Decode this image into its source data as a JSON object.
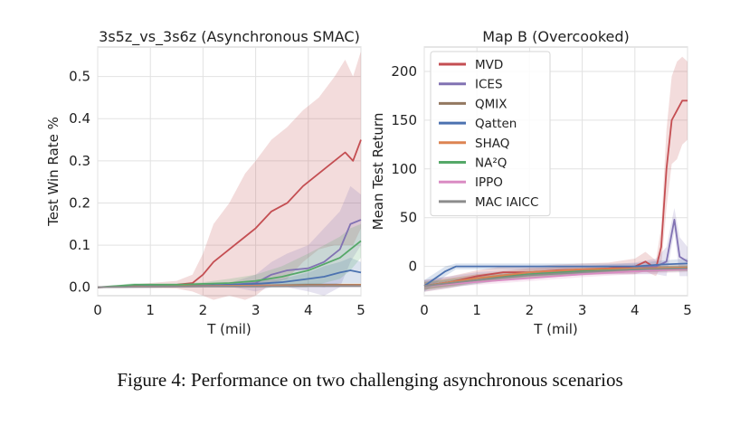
{
  "caption": "Figure 4: Performance on two challenging asynchronous scenarios",
  "chart_data": [
    {
      "type": "line",
      "title": "3s5z_vs_3s6z (Asynchronous SMAC)",
      "xlabel": "T (mil)",
      "ylabel": "Test Win Rate %",
      "xlim": [
        0,
        5
      ],
      "ylim": [
        -0.02,
        0.57
      ],
      "xticks": [
        "0",
        "1",
        "2",
        "3",
        "4",
        "5"
      ],
      "yticks": [
        "0.0",
        "0.1",
        "0.2",
        "0.3",
        "0.4",
        "0.5"
      ],
      "grid": true,
      "series": [
        {
          "name": "MVD",
          "color": "#c44e52",
          "x": [
            0,
            0.5,
            1,
            1.5,
            1.8,
            2,
            2.2,
            2.5,
            2.8,
            3,
            3.3,
            3.6,
            3.9,
            4.2,
            4.5,
            4.7,
            4.85,
            5
          ],
          "values": [
            0,
            0.002,
            0.004,
            0.006,
            0.01,
            0.03,
            0.06,
            0.09,
            0.12,
            0.14,
            0.18,
            0.2,
            0.24,
            0.27,
            0.3,
            0.32,
            0.3,
            0.35
          ],
          "band": [
            0,
            0.005,
            0.01,
            0.015,
            0.03,
            0.08,
            0.15,
            0.2,
            0.27,
            0.3,
            0.35,
            0.38,
            0.42,
            0.45,
            0.5,
            0.54,
            0.5,
            0.56
          ]
        },
        {
          "name": "ICES",
          "color": "#8172b3",
          "x": [
            0,
            1,
            2,
            2.5,
            3,
            3.3,
            3.6,
            4,
            4.3,
            4.6,
            4.8,
            5
          ],
          "values": [
            0,
            0.002,
            0.004,
            0.006,
            0.01,
            0.03,
            0.04,
            0.045,
            0.06,
            0.09,
            0.15,
            0.16
          ],
          "band": [
            0,
            0.004,
            0.008,
            0.01,
            0.03,
            0.06,
            0.08,
            0.1,
            0.14,
            0.18,
            0.24,
            0.22
          ]
        },
        {
          "name": "QMIX",
          "color": "#937860",
          "x": [
            0,
            1,
            2,
            3,
            4,
            5
          ],
          "values": [
            0,
            0.002,
            0.003,
            0.004,
            0.006,
            0.006
          ],
          "band": [
            0,
            0.003,
            0.004,
            0.006,
            0.01,
            0.01
          ]
        },
        {
          "name": "Qatten",
          "color": "#4c72b0",
          "x": [
            0,
            1,
            2,
            2.5,
            3,
            3.5,
            4,
            4.3,
            4.6,
            4.8,
            5
          ],
          "values": [
            0,
            0.003,
            0.004,
            0.006,
            0.008,
            0.012,
            0.02,
            0.025,
            0.035,
            0.04,
            0.035
          ],
          "band": [
            0,
            0.005,
            0.008,
            0.01,
            0.015,
            0.02,
            0.035,
            0.05,
            0.06,
            0.07,
            0.06
          ]
        },
        {
          "name": "SHAQ",
          "color": "#dd8452",
          "x": [
            0,
            1,
            2,
            3,
            4,
            5
          ],
          "values": [
            0,
            0.002,
            0.003,
            0.004,
            0.004,
            0.005
          ],
          "band": [
            0,
            0.003,
            0.004,
            0.005,
            0.006,
            0.007
          ]
        },
        {
          "name": "NA²Q",
          "color": "#55a868",
          "x": [
            0,
            0.7,
            1.5,
            2,
            2.5,
            3,
            3.5,
            4,
            4.3,
            4.6,
            4.8,
            5
          ],
          "values": [
            0,
            0.006,
            0.006,
            0.008,
            0.01,
            0.015,
            0.025,
            0.04,
            0.055,
            0.07,
            0.09,
            0.11
          ],
          "band": [
            0,
            0.01,
            0.01,
            0.012,
            0.02,
            0.03,
            0.05,
            0.08,
            0.1,
            0.12,
            0.14,
            0.15
          ]
        },
        {
          "name": "IPPO",
          "color": "#da8bc3",
          "x": [
            0,
            1,
            2,
            3,
            4,
            5
          ],
          "values": [
            0,
            0.001,
            0.002,
            0.002,
            0.003,
            0.003
          ],
          "band": [
            0,
            0.002,
            0.003,
            0.003,
            0.004,
            0.004
          ]
        },
        {
          "name": "MAC IAICC",
          "color": "#8c8c8c",
          "x": [
            0,
            1,
            2,
            3,
            4,
            5
          ],
          "values": [
            0,
            0.001,
            0.002,
            0.002,
            0.003,
            0.003
          ],
          "band": [
            0,
            0.002,
            0.003,
            0.003,
            0.004,
            0.004
          ]
        }
      ]
    },
    {
      "type": "line",
      "title": "Map B (Overcooked)",
      "xlabel": "T (mil)",
      "ylabel": "Mean Test Return",
      "xlim": [
        0,
        5
      ],
      "ylim": [
        -30,
        225
      ],
      "xticks": [
        "0",
        "1",
        "2",
        "3",
        "4",
        "5"
      ],
      "yticks": [
        "0",
        "50",
        "100",
        "150",
        "200"
      ],
      "grid": true,
      "legend": "top-left",
      "series": [
        {
          "name": "MVD",
          "color": "#c44e52",
          "x": [
            0,
            0.5,
            1,
            1.5,
            2,
            2.5,
            3,
            3.5,
            4,
            4.2,
            4.4,
            4.5,
            4.6,
            4.7,
            4.8,
            4.9,
            5
          ],
          "values": [
            -20,
            -16,
            -10,
            -6,
            -6,
            -4,
            -3,
            -2,
            0,
            5,
            -2,
            20,
            100,
            150,
            160,
            170,
            170
          ],
          "band": [
            -14,
            -10,
            -4,
            0,
            0,
            2,
            3,
            4,
            8,
            15,
            6,
            40,
            140,
            195,
            210,
            215,
            210
          ]
        },
        {
          "name": "ICES",
          "color": "#8172b3",
          "x": [
            0,
            1,
            2,
            3,
            4,
            4.4,
            4.6,
            4.75,
            4.85,
            5
          ],
          "values": [
            -20,
            -12,
            -6,
            -4,
            -2,
            0,
            5,
            48,
            10,
            5
          ],
          "band": [
            -14,
            -6,
            -2,
            0,
            4,
            8,
            20,
            60,
            30,
            20
          ]
        },
        {
          "name": "QMIX",
          "color": "#937860",
          "x": [
            0,
            1,
            2,
            3,
            4,
            5
          ],
          "values": [
            -20,
            -12,
            -8,
            -5,
            -3,
            -2
          ],
          "band": [
            -16,
            -8,
            -4,
            -2,
            0,
            1
          ]
        },
        {
          "name": "Qatten",
          "color": "#4c72b0",
          "x": [
            0,
            0.4,
            0.6,
            1,
            2,
            3,
            4,
            4.5,
            5
          ],
          "values": [
            -20,
            -5,
            0,
            0,
            0,
            0,
            0,
            2,
            3
          ],
          "band": [
            -14,
            0,
            3,
            3,
            3,
            3,
            3,
            6,
            8
          ]
        },
        {
          "name": "SHAQ",
          "color": "#dd8452",
          "x": [
            0,
            1,
            2,
            3,
            4,
            5
          ],
          "values": [
            -20,
            -12,
            -6,
            -3,
            -2,
            -1
          ],
          "band": [
            -16,
            -8,
            -2,
            0,
            1,
            2
          ]
        },
        {
          "name": "NA²Q",
          "color": "#55a868",
          "x": [
            0,
            1,
            2,
            3,
            4,
            5
          ],
          "values": [
            -20,
            -14,
            -8,
            -5,
            -3,
            -2
          ],
          "band": [
            -16,
            -10,
            -5,
            -2,
            0,
            1
          ]
        },
        {
          "name": "IPPO",
          "color": "#da8bc3",
          "x": [
            0,
            1,
            2,
            3,
            4,
            5
          ],
          "values": [
            -20,
            -16,
            -12,
            -8,
            -5,
            -3
          ],
          "band": [
            -17,
            -13,
            -9,
            -5,
            -2,
            0
          ]
        },
        {
          "name": "MAC IAICC",
          "color": "#8c8c8c",
          "x": [
            0,
            1,
            2,
            3,
            4,
            5
          ],
          "values": [
            -20,
            -14,
            -9,
            -6,
            -3,
            -2
          ],
          "band": [
            -17,
            -11,
            -6,
            -3,
            0,
            1
          ]
        }
      ]
    }
  ]
}
